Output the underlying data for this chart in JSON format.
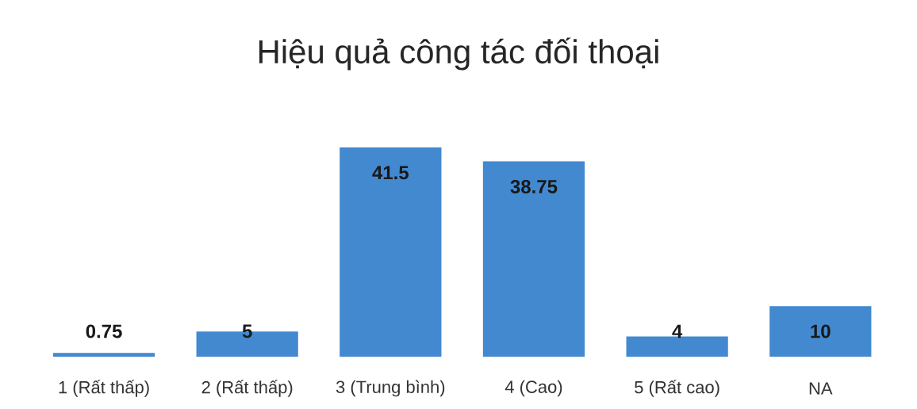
{
  "chart_data": {
    "type": "bar",
    "title": "Hiệu quả công tác đối thoại",
    "categories": [
      "1 (Rất thấp)",
      "2 (Rất thấp)",
      "3 (Trung bình)",
      "4 (Cao)",
      "5 (Rất cao)",
      "NA"
    ],
    "values": [
      0.75,
      5,
      41.5,
      38.75,
      4,
      10
    ],
    "color": "#4389d0",
    "data_labels": true
  }
}
